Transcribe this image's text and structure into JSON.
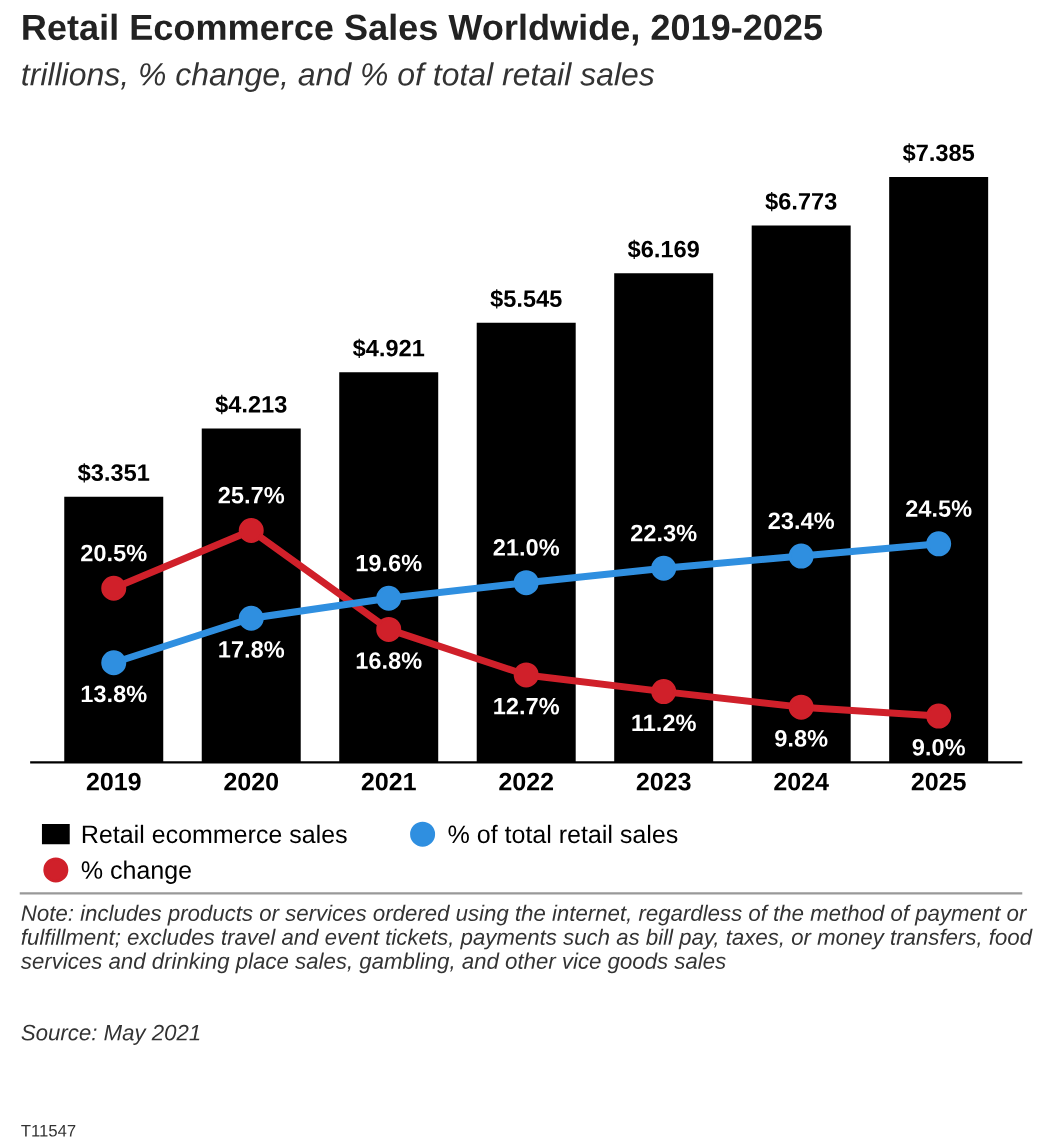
{
  "chart_data": {
    "type": "bar",
    "title": "Retail Ecommerce Sales Worldwide, 2019-2025",
    "subtitle": "trillions, % change, and % of total retail sales",
    "categories": [
      "2019",
      "2020",
      "2021",
      "2022",
      "2023",
      "2024",
      "2025"
    ],
    "series": [
      {
        "name": "Retail ecommerce sales",
        "color": "#000000",
        "values": [
          3.351,
          4.213,
          4.921,
          5.545,
          6.169,
          6.773,
          7.385
        ],
        "value_labels": [
          "$3.351",
          "$4.213",
          "$4.921",
          "$5.545",
          "$6.169",
          "$6.773",
          "$7.385"
        ]
      },
      {
        "name": "% change",
        "type": "line",
        "axis": "y2",
        "color": "#d0202a",
        "marker": "circle",
        "values": [
          20.5,
          25.7,
          16.8,
          12.7,
          11.2,
          9.8,
          9.0
        ],
        "value_labels": [
          "20.5%",
          "25.7%",
          "16.8%",
          "12.7%",
          "11.2%",
          "9.8%",
          "9.0%"
        ]
      },
      {
        "name": "% of total retail sales",
        "type": "line",
        "axis": "y2",
        "color": "#2f8fe0",
        "marker": "circle",
        "values": [
          13.8,
          17.8,
          19.6,
          21.0,
          22.3,
          23.4,
          24.5
        ],
        "value_labels": [
          "13.8%",
          "17.8%",
          "19.6%",
          "21.0%",
          "22.3%",
          "23.4%",
          "24.5%"
        ]
      }
    ],
    "legend": "bottom",
    "grid": false,
    "annotations": [
      "Note: includes products or services ordered using the internet, regardless of the method of payment or fulfillment; excludes travel and event tickets, payments such as bill pay, taxes, or money transfers, food services and drinking place sales, gambling, and other vice goods sales",
      "Source: May 2021",
      "T11547"
    ]
  }
}
